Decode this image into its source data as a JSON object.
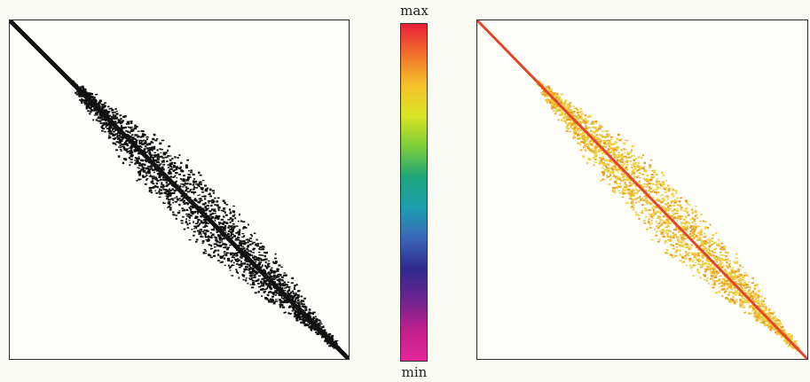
{
  "colorbar": {
    "max_label": "max",
    "min_label": "min",
    "gradient_colors": [
      "#e8203a",
      "#f2712c",
      "#f4c22a",
      "#d9e422",
      "#7ccd3a",
      "#1ea57a",
      "#1a9fae",
      "#3c67b8",
      "#2e2a8c",
      "#6c2490",
      "#c0208c",
      "#e6289a"
    ]
  },
  "panels": [
    {
      "name": "sparsity-pattern",
      "style": "monochrome",
      "point_color": "#111111"
    },
    {
      "name": "magnitude-pattern",
      "style": "colored",
      "diagonal_color": "#e2462a",
      "point_colors": [
        "#f4cf3a",
        "#f0b82c",
        "#e99a24",
        "#e4d84a"
      ]
    }
  ]
}
